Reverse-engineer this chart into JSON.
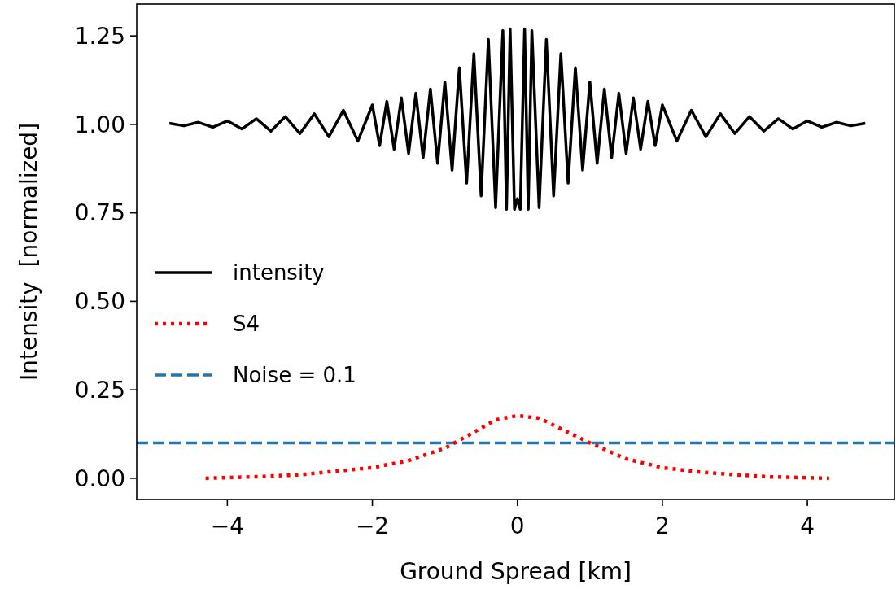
{
  "chart_data": {
    "type": "line",
    "xlabel": "Ground Spread [km]",
    "ylabel": "Intensity  [normalized]",
    "xlim": [
      -5.25,
      5.2
    ],
    "xticks": [
      {
        "value": -4,
        "label": "−4"
      },
      {
        "value": -2,
        "label": "−2"
      },
      0,
      2,
      4
    ],
    "ylim": [
      -0.06,
      1.34
    ],
    "yticks": [
      {
        "value": 0,
        "label": "0.00"
      },
      0.25,
      {
        "value": 0.5,
        "label": "0.50"
      },
      0.75,
      {
        "value": 1,
        "label": "1.00"
      },
      1.25
    ],
    "grid": false,
    "legend": "left",
    "series": [
      {
        "name": "intensity",
        "color": "#000000",
        "line_style": "solid",
        "x": [
          -4.8,
          -4.6,
          -4.4,
          -4.2,
          -4.0,
          -3.8,
          -3.6,
          -3.4,
          -3.2,
          -3.0,
          -2.8,
          -2.6,
          -2.4,
          -2.2,
          -2.0,
          -1.9,
          -1.8,
          -1.7,
          -1.6,
          -1.5,
          -1.4,
          -1.3,
          -1.2,
          -1.1,
          -1.0,
          -0.9,
          -0.8,
          -0.7,
          -0.6,
          -0.5,
          -0.4,
          -0.3,
          -0.2,
          -0.15,
          -0.1,
          -0.04,
          0,
          0.04,
          0.1,
          0.15,
          0.2,
          0.3,
          0.4,
          0.5,
          0.6,
          0.7,
          0.8,
          0.9,
          1.0,
          1.1,
          1.2,
          1.3,
          1.4,
          1.5,
          1.6,
          1.7,
          1.8,
          1.9,
          2.0,
          2.2,
          2.4,
          2.6,
          2.8,
          3.0,
          3.2,
          3.4,
          3.6,
          3.8,
          4.0,
          4.2,
          4.4,
          4.6,
          4.8
        ],
        "values": [
          1.003,
          0.996,
          1.006,
          0.992,
          1.01,
          0.987,
          1.016,
          0.981,
          1.022,
          0.974,
          1.03,
          0.965,
          1.04,
          0.953,
          1.055,
          0.94,
          1.065,
          0.93,
          1.075,
          0.918,
          1.088,
          0.906,
          1.1,
          0.89,
          1.12,
          0.871,
          1.16,
          0.834,
          1.2,
          0.798,
          1.24,
          0.765,
          1.265,
          0.76,
          1.27,
          0.76,
          0.79,
          0.76,
          1.27,
          0.76,
          1.265,
          0.765,
          1.24,
          0.798,
          1.2,
          0.834,
          1.16,
          0.871,
          1.12,
          0.89,
          1.1,
          0.906,
          1.088,
          0.918,
          1.075,
          0.93,
          1.065,
          0.94,
          1.055,
          0.953,
          1.04,
          0.965,
          1.03,
          0.974,
          1.022,
          0.981,
          1.016,
          0.987,
          1.01,
          0.992,
          1.006,
          0.996,
          1.003
        ]
      },
      {
        "name": "S4",
        "color": "#ff0000",
        "line_style": "dotted",
        "x": [
          -4.3,
          -3.5,
          -3,
          -2.5,
          -2,
          -1.5,
          -1,
          -0.6,
          -0.3,
          0,
          0.3,
          0.6,
          1,
          1.5,
          2,
          2.5,
          3,
          3.5,
          4.3
        ],
        "values": [
          0.0,
          0.005,
          0.01,
          0.02,
          0.03,
          0.05,
          0.085,
          0.13,
          0.165,
          0.177,
          0.17,
          0.14,
          0.1,
          0.055,
          0.03,
          0.018,
          0.01,
          0.004,
          0.0
        ]
      }
    ],
    "ref_lines": [
      {
        "axis": "y",
        "value": 0.1,
        "label": "Noise = 0.1",
        "color": "#1f77b4",
        "line_style": "dashed"
      }
    ]
  }
}
